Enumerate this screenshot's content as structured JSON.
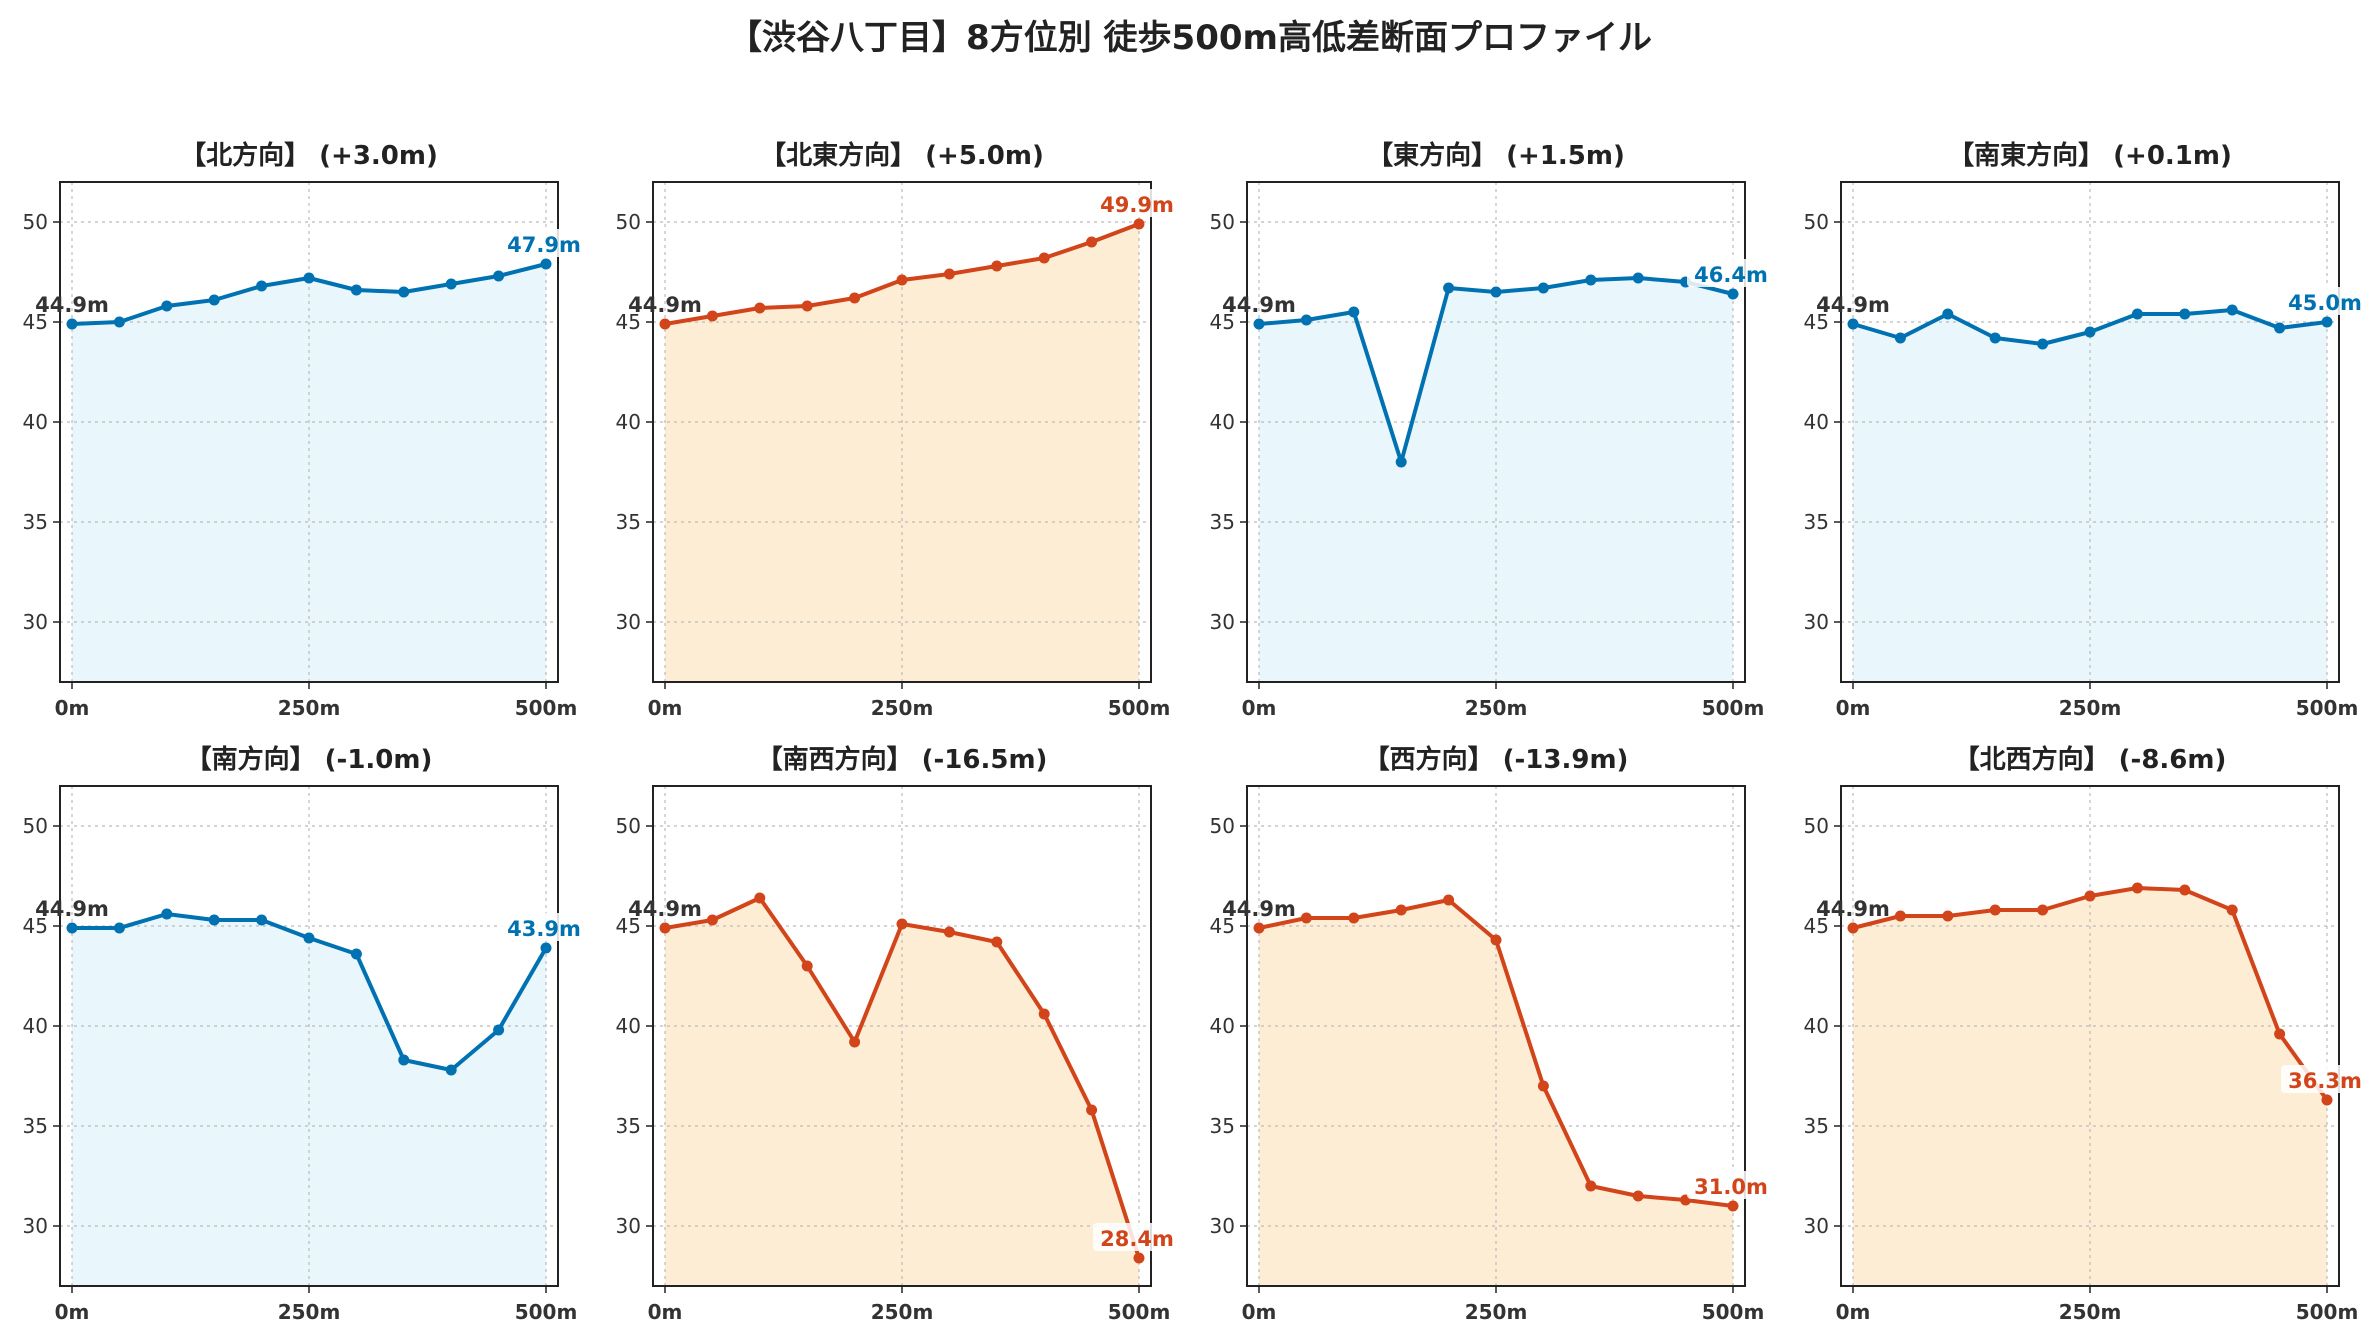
{
  "title": "【渋谷八丁目】8方位別 徒歩500m高低差断面プロファイル",
  "colors": {
    "up": "#0072b2",
    "up_fill": "#e9f6fc",
    "down": "#d2441a",
    "down_fill": "#fdedd4",
    "start_label": "#333333"
  },
  "chart_data": [
    {
      "type": "area",
      "title": "【北方向】 (+3.0m)",
      "trend": "up",
      "x": [
        0,
        50,
        100,
        150,
        200,
        250,
        300,
        350,
        400,
        450,
        500
      ],
      "y": [
        44.9,
        45.0,
        45.8,
        46.1,
        46.8,
        47.2,
        46.6,
        46.5,
        46.9,
        47.3,
        47.9
      ],
      "start_label": "44.9m",
      "end_label": "47.9m",
      "ylim": [
        27,
        52
      ],
      "yticks": [
        30,
        35,
        40,
        45,
        50
      ],
      "xticks": [
        0,
        250,
        500
      ],
      "xtick_labels": [
        "0m",
        "250m",
        "500m"
      ],
      "grid": true
    },
    {
      "type": "area",
      "title": "【北東方向】 (+5.0m)",
      "trend": "down",
      "x": [
        0,
        50,
        100,
        150,
        200,
        250,
        300,
        350,
        400,
        450,
        500
      ],
      "y": [
        44.9,
        45.3,
        45.7,
        45.8,
        46.2,
        47.1,
        47.4,
        47.8,
        48.2,
        49.0,
        49.9
      ],
      "start_label": "44.9m",
      "end_label": "49.9m",
      "ylim": [
        27,
        52
      ],
      "yticks": [
        30,
        35,
        40,
        45,
        50
      ],
      "xticks": [
        0,
        250,
        500
      ],
      "xtick_labels": [
        "0m",
        "250m",
        "500m"
      ],
      "grid": true
    },
    {
      "type": "area",
      "title": "【東方向】 (+1.5m)",
      "trend": "up",
      "x": [
        0,
        50,
        100,
        150,
        200,
        250,
        300,
        350,
        400,
        450,
        500
      ],
      "y": [
        44.9,
        45.1,
        45.5,
        38.0,
        46.7,
        46.5,
        46.7,
        47.1,
        47.2,
        47.0,
        46.4
      ],
      "start_label": "44.9m",
      "end_label": "46.4m",
      "ylim": [
        27,
        52
      ],
      "yticks": [
        30,
        35,
        40,
        45,
        50
      ],
      "xticks": [
        0,
        250,
        500
      ],
      "xtick_labels": [
        "0m",
        "250m",
        "500m"
      ],
      "grid": true
    },
    {
      "type": "area",
      "title": "【南東方向】 (+0.1m)",
      "trend": "up",
      "x": [
        0,
        50,
        100,
        150,
        200,
        250,
        300,
        350,
        400,
        450,
        500
      ],
      "y": [
        44.9,
        44.2,
        45.4,
        44.2,
        43.9,
        44.5,
        45.4,
        45.4,
        45.6,
        44.7,
        45.0
      ],
      "start_label": "44.9m",
      "end_label": "45.0m",
      "ylim": [
        27,
        52
      ],
      "yticks": [
        30,
        35,
        40,
        45,
        50
      ],
      "xticks": [
        0,
        250,
        500
      ],
      "xtick_labels": [
        "0m",
        "250m",
        "500m"
      ],
      "grid": true
    },
    {
      "type": "area",
      "title": "【南方向】 (-1.0m)",
      "trend": "up",
      "x": [
        0,
        50,
        100,
        150,
        200,
        250,
        300,
        350,
        400,
        450,
        500
      ],
      "y": [
        44.9,
        44.9,
        45.6,
        45.3,
        45.3,
        44.4,
        43.6,
        38.3,
        37.8,
        39.8,
        43.9
      ],
      "start_label": "44.9m",
      "end_label": "43.9m",
      "ylim": [
        27,
        52
      ],
      "yticks": [
        30,
        35,
        40,
        45,
        50
      ],
      "xticks": [
        0,
        250,
        500
      ],
      "xtick_labels": [
        "0m",
        "250m",
        "500m"
      ],
      "grid": true
    },
    {
      "type": "area",
      "title": "【南西方向】 (-16.5m)",
      "trend": "down",
      "x": [
        0,
        50,
        100,
        150,
        200,
        250,
        300,
        350,
        400,
        450,
        500
      ],
      "y": [
        44.9,
        45.3,
        46.4,
        43.0,
        39.2,
        45.1,
        44.7,
        44.2,
        40.6,
        35.8,
        28.4
      ],
      "start_label": "44.9m",
      "end_label": "28.4m",
      "ylim": [
        27,
        52
      ],
      "yticks": [
        30,
        35,
        40,
        45,
        50
      ],
      "xticks": [
        0,
        250,
        500
      ],
      "xtick_labels": [
        "0m",
        "250m",
        "500m"
      ],
      "grid": true
    },
    {
      "type": "area",
      "title": "【西方向】 (-13.9m)",
      "trend": "down",
      "x": [
        0,
        50,
        100,
        150,
        200,
        250,
        300,
        350,
        400,
        450,
        500
      ],
      "y": [
        44.9,
        45.4,
        45.4,
        45.8,
        46.3,
        44.3,
        37.0,
        32.0,
        31.5,
        31.3,
        31.0
      ],
      "start_label": "44.9m",
      "end_label": "31.0m",
      "ylim": [
        27,
        52
      ],
      "yticks": [
        30,
        35,
        40,
        45,
        50
      ],
      "xticks": [
        0,
        250,
        500
      ],
      "xtick_labels": [
        "0m",
        "250m",
        "500m"
      ],
      "grid": true
    },
    {
      "type": "area",
      "title": "【北西方向】 (-8.6m)",
      "trend": "down",
      "x": [
        0,
        50,
        100,
        150,
        200,
        250,
        300,
        350,
        400,
        450,
        500
      ],
      "y": [
        44.9,
        45.5,
        45.5,
        45.8,
        45.8,
        46.5,
        46.9,
        46.8,
        45.8,
        39.6,
        36.3
      ],
      "start_label": "44.9m",
      "end_label": "36.3m",
      "ylim": [
        27,
        52
      ],
      "yticks": [
        30,
        35,
        40,
        45,
        50
      ],
      "xticks": [
        0,
        250,
        500
      ],
      "xtick_labels": [
        "0m",
        "250m",
        "500m"
      ],
      "grid": true
    }
  ]
}
